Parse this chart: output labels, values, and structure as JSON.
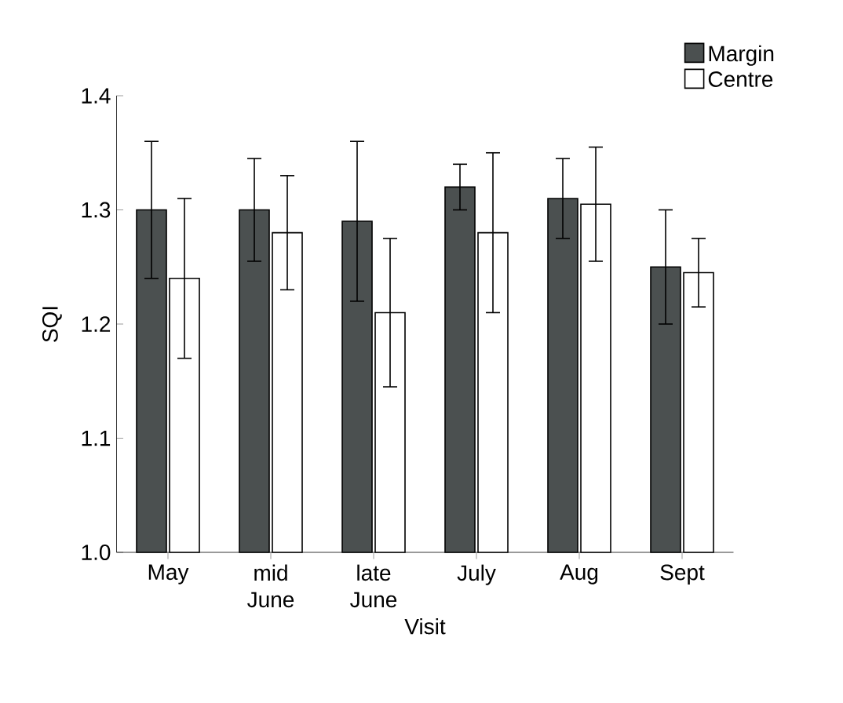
{
  "chart_data": {
    "type": "bar",
    "xlabel": "Visit",
    "ylabel": "SQI",
    "categories": [
      "May",
      "mid June",
      "late June",
      "July",
      "Aug",
      "Sept"
    ],
    "series": [
      {
        "name": "Margin",
        "color": "#4b5050",
        "values": [
          1.3,
          1.3,
          1.29,
          1.32,
          1.31,
          1.25
        ],
        "errors": [
          0.06,
          0.045,
          0.07,
          0.02,
          0.035,
          0.05
        ]
      },
      {
        "name": "Centre",
        "color": "#ffffff",
        "values": [
          1.24,
          1.28,
          1.21,
          1.28,
          1.305,
          1.245
        ],
        "errors": [
          0.07,
          0.05,
          0.065,
          0.07,
          0.05,
          0.03
        ]
      }
    ],
    "ylim": [
      1.0,
      1.4
    ],
    "yticks": [
      {
        "value": 1.0,
        "label": "1.0"
      },
      {
        "value": 1.1,
        "label": "1.1"
      },
      {
        "value": 1.2,
        "label": "1.2"
      },
      {
        "value": 1.3,
        "label": "1.3"
      },
      {
        "value": 1.4,
        "label": "1.4"
      }
    ],
    "grid": false,
    "legend": "top right"
  }
}
